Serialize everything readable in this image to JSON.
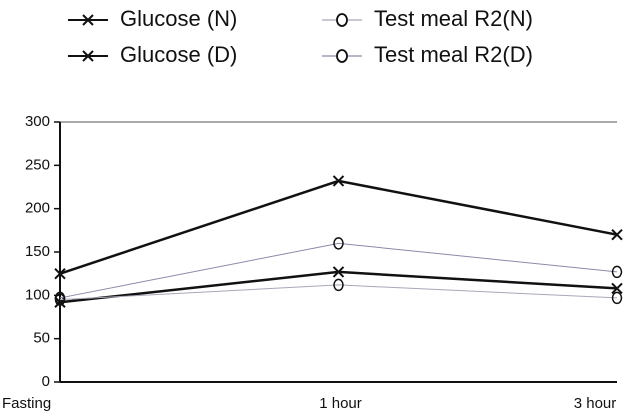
{
  "chart_data": {
    "type": "line",
    "categories": [
      "Fasting",
      "1 hour",
      "3 hour"
    ],
    "series": [
      {
        "name": "Glucose (N)",
        "color": "#111111",
        "marker": "x",
        "width": 2.5,
        "values": [
          92,
          127,
          108
        ]
      },
      {
        "name": "Glucose (D)",
        "color": "#111111",
        "marker": "x",
        "width": 2.5,
        "values": [
          125,
          232,
          170
        ]
      },
      {
        "name": "Test meal R2(N)",
        "color": "#a8a8b8",
        "marker": "o",
        "width": 1,
        "values": [
          95,
          112,
          97
        ]
      },
      {
        "name": "Test meal R2(D)",
        "color": "#8a8aa8",
        "marker": "o",
        "width": 1,
        "values": [
          97,
          160,
          127
        ]
      }
    ],
    "ylim": [
      0,
      300
    ],
    "yticks": [
      0,
      50,
      100,
      150,
      200,
      250,
      300
    ],
    "grid": false
  }
}
